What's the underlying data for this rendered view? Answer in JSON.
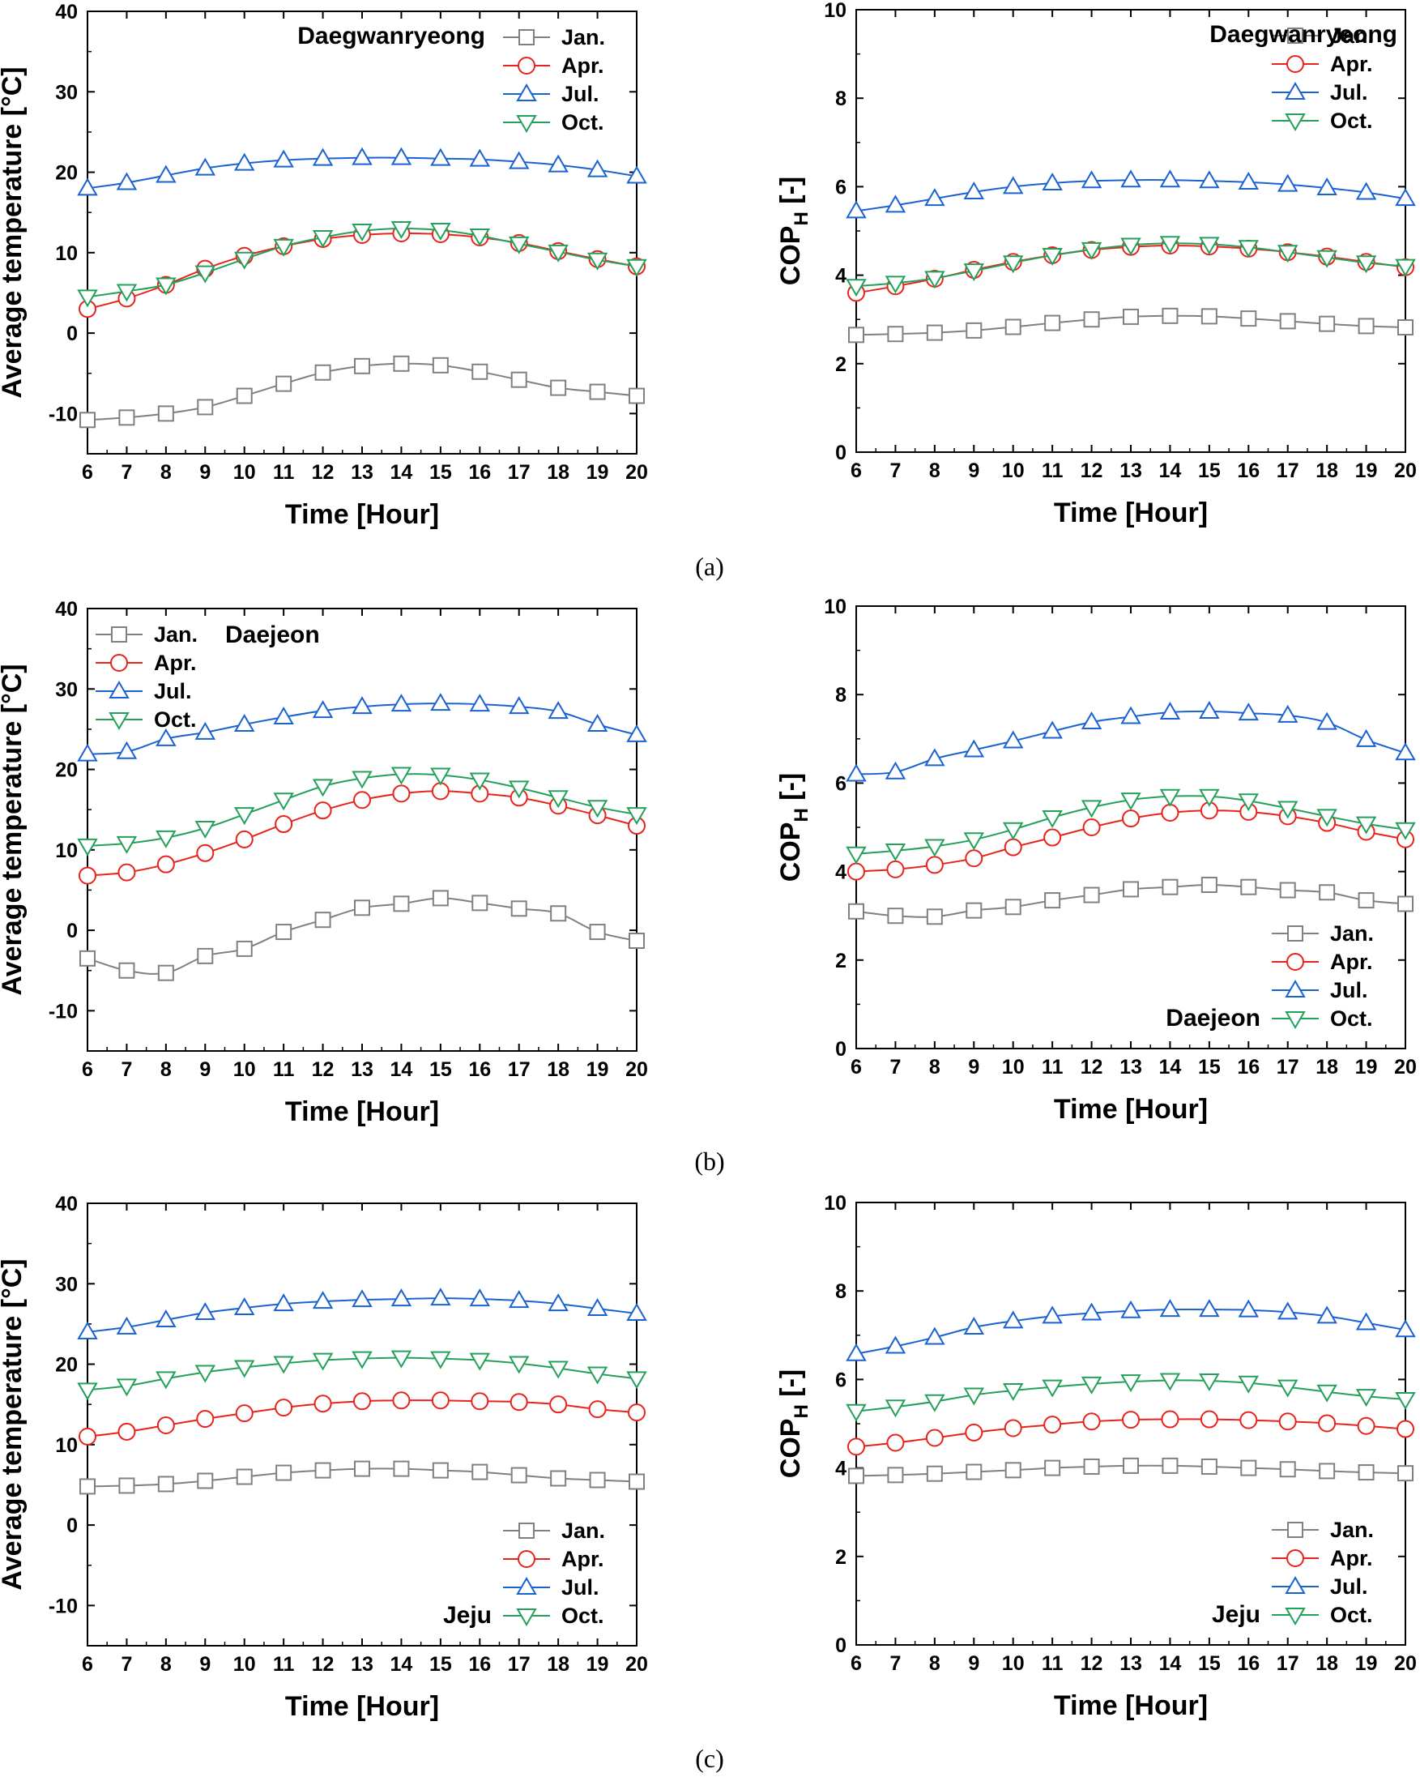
{
  "figure": {
    "subfigure_labels": [
      "(a)",
      "(b)",
      "(c)"
    ]
  },
  "styles": {
    "series_colors": {
      "Jan.": "#808080",
      "Apr.": "#e8231a",
      "Jul.": "#1a62d1",
      "Oct.": "#24a05a"
    },
    "series_markers": {
      "Jan.": "square",
      "Apr.": "circle",
      "Jul.": "triangle-up",
      "Oct.": "triangle-down"
    }
  },
  "chart_data": [
    {
      "id": "a-temp",
      "type": "line",
      "station": "Daegwanryeong",
      "legend_position": "top-right",
      "station_position": "top-center",
      "xlabel": "Time [Hour]",
      "ylabel": "Average temperature [°C]",
      "ylabel_html": null,
      "xlim": [
        6,
        20
      ],
      "ylim": [
        -15,
        40
      ],
      "xticks": [
        6,
        7,
        8,
        9,
        10,
        11,
        12,
        13,
        14,
        15,
        16,
        17,
        18,
        19,
        20
      ],
      "yticks": [
        -10,
        0,
        10,
        20,
        30,
        40
      ],
      "x": [
        6,
        7,
        8,
        9,
        10,
        11,
        12,
        13,
        14,
        15,
        16,
        17,
        18,
        19,
        20
      ],
      "series": [
        {
          "name": "Jan.",
          "values": [
            -10.8,
            -10.5,
            -10.0,
            -9.2,
            -7.8,
            -6.3,
            -4.9,
            -4.1,
            -3.8,
            -4.0,
            -4.8,
            -5.8,
            -6.8,
            -7.3,
            -7.8
          ]
        },
        {
          "name": "Apr.",
          "values": [
            3.0,
            4.3,
            6.0,
            8.0,
            9.6,
            10.8,
            11.7,
            12.2,
            12.4,
            12.3,
            11.9,
            11.2,
            10.2,
            9.2,
            8.3
          ]
        },
        {
          "name": "Jul.",
          "values": [
            18.0,
            18.7,
            19.6,
            20.5,
            21.1,
            21.5,
            21.7,
            21.8,
            21.8,
            21.7,
            21.6,
            21.3,
            20.9,
            20.3,
            19.5
          ]
        },
        {
          "name": "Oct.",
          "values": [
            4.5,
            5.2,
            6.0,
            7.5,
            9.2,
            10.8,
            11.9,
            12.7,
            13.0,
            12.8,
            12.1,
            11.1,
            10.1,
            9.1,
            8.3
          ]
        }
      ]
    },
    {
      "id": "a-cop",
      "type": "line",
      "station": "Daegwanryeong",
      "legend_position": "top-right",
      "station_position": "top-right",
      "xlabel": "Time [Hour]",
      "ylabel": "COP",
      "ylabel_sub": "H",
      "ylabel_suffix": " [-]",
      "xlim": [
        6,
        20
      ],
      "ylim": [
        0,
        10
      ],
      "xticks": [
        6,
        7,
        8,
        9,
        10,
        11,
        12,
        13,
        14,
        15,
        16,
        17,
        18,
        19,
        20
      ],
      "yticks": [
        0,
        2,
        4,
        6,
        8,
        10
      ],
      "x": [
        6,
        7,
        8,
        9,
        10,
        11,
        12,
        13,
        14,
        15,
        16,
        17,
        18,
        19,
        20
      ],
      "series": [
        {
          "name": "Jan.",
          "values": [
            2.65,
            2.67,
            2.7,
            2.75,
            2.83,
            2.92,
            3.0,
            3.06,
            3.08,
            3.07,
            3.02,
            2.96,
            2.9,
            2.85,
            2.82
          ]
        },
        {
          "name": "Apr.",
          "values": [
            3.6,
            3.75,
            3.92,
            4.12,
            4.3,
            4.45,
            4.57,
            4.64,
            4.67,
            4.65,
            4.6,
            4.52,
            4.42,
            4.3,
            4.18
          ]
        },
        {
          "name": "Jul.",
          "values": [
            5.45,
            5.58,
            5.73,
            5.88,
            6.0,
            6.08,
            6.13,
            6.15,
            6.15,
            6.13,
            6.1,
            6.05,
            5.97,
            5.87,
            5.73
          ]
        },
        {
          "name": "Oct.",
          "values": [
            3.75,
            3.82,
            3.93,
            4.1,
            4.28,
            4.45,
            4.58,
            4.68,
            4.72,
            4.7,
            4.63,
            4.52,
            4.4,
            4.28,
            4.2
          ]
        }
      ]
    },
    {
      "id": "b-temp",
      "type": "line",
      "station": "Daejeon",
      "legend_position": "top-left",
      "station_position": "top-left",
      "xlabel": "Time [Hour]",
      "ylabel": "Average temperature [°C]",
      "xlim": [
        6,
        20
      ],
      "ylim": [
        -15,
        40
      ],
      "xticks": [
        6,
        7,
        8,
        9,
        10,
        11,
        12,
        13,
        14,
        15,
        16,
        17,
        18,
        19,
        20
      ],
      "yticks": [
        -10,
        0,
        10,
        20,
        30,
        40
      ],
      "x": [
        6,
        7,
        8,
        9,
        10,
        11,
        12,
        13,
        14,
        15,
        16,
        17,
        18,
        19,
        20
      ],
      "series": [
        {
          "name": "Jan.",
          "values": [
            -3.5,
            -5.0,
            -5.3,
            -3.2,
            -2.3,
            -0.2,
            1.3,
            2.8,
            3.3,
            4.0,
            3.4,
            2.7,
            2.1,
            -0.2,
            -1.3
          ]
        },
        {
          "name": "Apr.",
          "values": [
            6.8,
            7.2,
            8.2,
            9.6,
            11.3,
            13.2,
            14.9,
            16.2,
            17.0,
            17.3,
            17.0,
            16.5,
            15.5,
            14.3,
            13.0
          ]
        },
        {
          "name": "Jul.",
          "values": [
            21.9,
            22.2,
            23.8,
            24.6,
            25.6,
            26.5,
            27.3,
            27.8,
            28.1,
            28.2,
            28.1,
            27.8,
            27.2,
            25.6,
            24.3
          ]
        },
        {
          "name": "Oct.",
          "values": [
            10.5,
            10.8,
            11.5,
            12.7,
            14.4,
            16.2,
            17.9,
            18.9,
            19.4,
            19.3,
            18.7,
            17.7,
            16.5,
            15.3,
            14.4
          ]
        }
      ]
    },
    {
      "id": "b-cop",
      "type": "line",
      "station": "Daejeon",
      "legend_position": "bottom-right",
      "station_position": "bottom-right",
      "xlabel": "Time [Hour]",
      "ylabel": "COP",
      "ylabel_sub": "H",
      "ylabel_suffix": " [-]",
      "xlim": [
        6,
        20
      ],
      "ylim": [
        0,
        10
      ],
      "xticks": [
        6,
        7,
        8,
        9,
        10,
        11,
        12,
        13,
        14,
        15,
        16,
        17,
        18,
        19,
        20
      ],
      "yticks": [
        0,
        2,
        4,
        6,
        8,
        10
      ],
      "x": [
        6,
        7,
        8,
        9,
        10,
        11,
        12,
        13,
        14,
        15,
        16,
        17,
        18,
        19,
        20
      ],
      "series": [
        {
          "name": "Jan.",
          "values": [
            3.1,
            3.0,
            2.98,
            3.12,
            3.2,
            3.35,
            3.47,
            3.6,
            3.65,
            3.7,
            3.65,
            3.58,
            3.53,
            3.35,
            3.27
          ]
        },
        {
          "name": "Apr.",
          "values": [
            4.0,
            4.05,
            4.15,
            4.3,
            4.55,
            4.77,
            5.0,
            5.2,
            5.33,
            5.38,
            5.35,
            5.25,
            5.1,
            4.9,
            4.73
          ]
        },
        {
          "name": "Jul.",
          "values": [
            6.2,
            6.25,
            6.55,
            6.75,
            6.95,
            7.17,
            7.38,
            7.5,
            7.6,
            7.62,
            7.58,
            7.53,
            7.37,
            6.98,
            6.68
          ]
        },
        {
          "name": "Oct.",
          "values": [
            4.4,
            4.47,
            4.57,
            4.72,
            4.95,
            5.22,
            5.45,
            5.62,
            5.7,
            5.7,
            5.6,
            5.43,
            5.25,
            5.08,
            4.95
          ]
        }
      ]
    },
    {
      "id": "c-temp",
      "type": "line",
      "station": "Jeju",
      "legend_position": "bottom-right",
      "station_position": "bottom-right",
      "xlabel": "Time [Hour]",
      "ylabel": "Average temperature [°C]",
      "xlim": [
        6,
        20
      ],
      "ylim": [
        -15,
        40
      ],
      "xticks": [
        6,
        7,
        8,
        9,
        10,
        11,
        12,
        13,
        14,
        15,
        16,
        17,
        18,
        19,
        20
      ],
      "yticks": [
        -10,
        0,
        10,
        20,
        30,
        40
      ],
      "x": [
        6,
        7,
        8,
        9,
        10,
        11,
        12,
        13,
        14,
        15,
        16,
        17,
        18,
        19,
        20
      ],
      "series": [
        {
          "name": "Jan.",
          "values": [
            4.8,
            4.9,
            5.1,
            5.5,
            6.0,
            6.5,
            6.8,
            7.0,
            7.0,
            6.8,
            6.6,
            6.2,
            5.8,
            5.6,
            5.4
          ]
        },
        {
          "name": "Apr.",
          "values": [
            11.0,
            11.6,
            12.4,
            13.2,
            13.9,
            14.6,
            15.1,
            15.4,
            15.5,
            15.5,
            15.4,
            15.3,
            15.0,
            14.4,
            14.0
          ]
        },
        {
          "name": "Jul.",
          "values": [
            24.0,
            24.6,
            25.5,
            26.4,
            27.0,
            27.5,
            27.8,
            28.0,
            28.1,
            28.2,
            28.1,
            27.9,
            27.5,
            26.9,
            26.3
          ]
        },
        {
          "name": "Oct.",
          "values": [
            16.8,
            17.3,
            18.2,
            19.0,
            19.6,
            20.1,
            20.5,
            20.7,
            20.8,
            20.7,
            20.5,
            20.1,
            19.5,
            18.8,
            18.2
          ]
        }
      ]
    },
    {
      "id": "c-cop",
      "type": "line",
      "station": "Jeju",
      "legend_position": "bottom-right",
      "station_position": "bottom-right",
      "xlabel": "Time [Hour]",
      "ylabel": "COP",
      "ylabel_sub": "H",
      "ylabel_suffix": " [-]",
      "xlim": [
        6,
        20
      ],
      "ylim": [
        0,
        10
      ],
      "xticks": [
        6,
        7,
        8,
        9,
        10,
        11,
        12,
        13,
        14,
        15,
        16,
        17,
        18,
        19,
        20
      ],
      "yticks": [
        0,
        2,
        4,
        6,
        8,
        10
      ],
      "x": [
        6,
        7,
        8,
        9,
        10,
        11,
        12,
        13,
        14,
        15,
        16,
        17,
        18,
        19,
        20
      ],
      "series": [
        {
          "name": "Jan.",
          "values": [
            3.82,
            3.84,
            3.87,
            3.91,
            3.95,
            4.0,
            4.03,
            4.05,
            4.05,
            4.03,
            4.0,
            3.97,
            3.93,
            3.9,
            3.88
          ]
        },
        {
          "name": "Apr.",
          "values": [
            4.48,
            4.57,
            4.68,
            4.8,
            4.9,
            4.98,
            5.05,
            5.09,
            5.1,
            5.1,
            5.08,
            5.05,
            5.01,
            4.95,
            4.88
          ]
        },
        {
          "name": "Jul.",
          "values": [
            6.58,
            6.75,
            6.95,
            7.18,
            7.32,
            7.43,
            7.5,
            7.55,
            7.58,
            7.58,
            7.57,
            7.52,
            7.43,
            7.28,
            7.12
          ]
        },
        {
          "name": "Oct.",
          "values": [
            5.28,
            5.38,
            5.5,
            5.65,
            5.75,
            5.83,
            5.9,
            5.95,
            5.98,
            5.97,
            5.92,
            5.83,
            5.72,
            5.62,
            5.55
          ]
        }
      ]
    }
  ]
}
